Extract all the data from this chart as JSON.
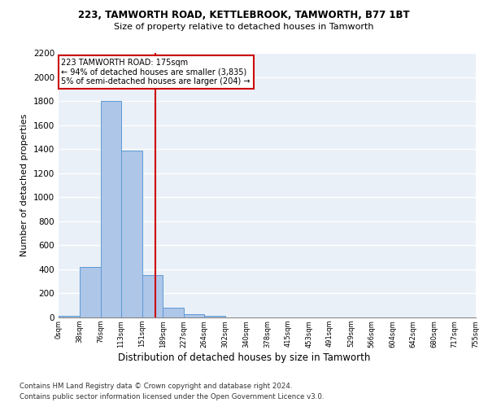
{
  "title1": "223, TAMWORTH ROAD, KETTLEBROOK, TAMWORTH, B77 1BT",
  "title2": "Size of property relative to detached houses in Tamworth",
  "xlabel": "Distribution of detached houses by size in Tamworth",
  "ylabel": "Number of detached properties",
  "footnote1": "Contains HM Land Registry data © Crown copyright and database right 2024.",
  "footnote2": "Contains public sector information licensed under the Open Government Licence v3.0.",
  "bin_edges": [
    0,
    38,
    76,
    113,
    151,
    189,
    227,
    264,
    302,
    340,
    378,
    415,
    453,
    491,
    529,
    566,
    604,
    642,
    680,
    717,
    755
  ],
  "bar_heights": [
    15,
    420,
    1800,
    1390,
    350,
    80,
    30,
    15,
    0,
    0,
    0,
    0,
    0,
    0,
    0,
    0,
    0,
    0,
    0,
    0
  ],
  "bar_color": "#aec6e8",
  "bar_edge_color": "#5b9bd5",
  "vline_x": 175,
  "vline_color": "#cc0000",
  "annotation_text": "223 TAMWORTH ROAD: 175sqm\n← 94% of detached houses are smaller (3,835)\n5% of semi-detached houses are larger (204) →",
  "annotation_box_color": "#ffffff",
  "annotation_box_edge": "#cc0000",
  "ylim": [
    0,
    2200
  ],
  "yticks": [
    0,
    200,
    400,
    600,
    800,
    1000,
    1200,
    1400,
    1600,
    1800,
    2000,
    2200
  ],
  "bg_color": "#eaf0f8",
  "grid_color": "#ffffff"
}
